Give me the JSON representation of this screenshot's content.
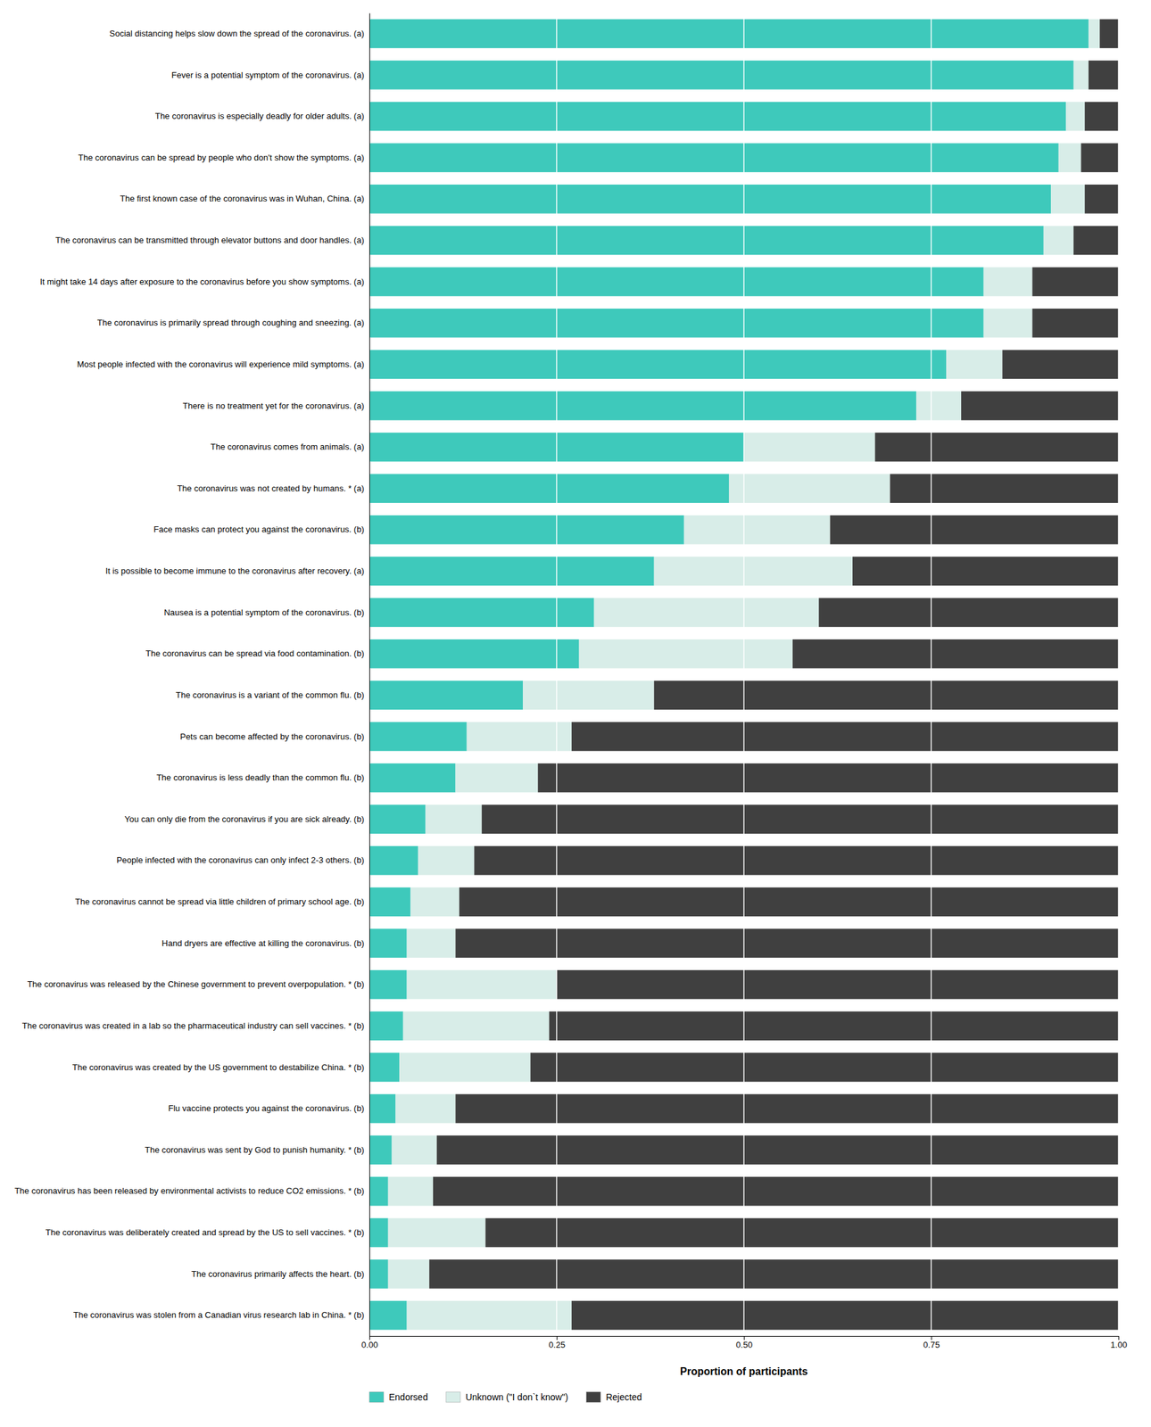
{
  "chart_data": {
    "type": "bar",
    "orientation": "horizontal",
    "stacked": true,
    "grid": true,
    "legend": "lower left",
    "xlabel": "Proportion of participants",
    "xlim": [
      0,
      1.0
    ],
    "xticks": [
      {
        "value": 0.0,
        "label": "0.00"
      },
      {
        "value": 0.25,
        "label": "0.25"
      },
      {
        "value": 0.5,
        "label": "0.50"
      },
      {
        "value": 0.75,
        "label": "0.75"
      },
      {
        "value": 1.0,
        "label": "1.00"
      }
    ],
    "categories": [
      "Social distancing helps slow down the spread of the coronavirus. (a)",
      "Fever is a potential symptom of the coronavirus. (a)",
      "The coronavirus is especially deadly for older adults. (a)",
      "The coronavirus can be spread by people who don't show the symptoms. (a)",
      "The first known case of the coronavirus was in Wuhan, China. (a)",
      "The coronavirus can be transmitted through elevator buttons and door handles. (a)",
      "It might take 14 days after exposure to the coronavirus before you show symptoms. (a)",
      "The coronavirus is primarily spread through coughing and sneezing. (a)",
      "Most people infected with the coronavirus will experience mild symptoms. (a)",
      "There is no treatment yet for the coronavirus. (a)",
      "The coronavirus comes from animals. (a)",
      "The coronavirus was not created by humans. * (a)",
      "Face masks can protect you against the coronavirus. (b)",
      "It is possible to become immune to the coronavirus after recovery. (a)",
      "Nausea is a potential symptom of the coronavirus. (b)",
      "The coronavirus can be spread via food contamination. (b)",
      "The coronavirus is a variant of the common flu. (b)",
      "Pets can become affected by the coronavirus. (b)",
      "The coronavirus is less deadly than the common flu. (b)",
      "You can only die from the coronavirus if you are sick already. (b)",
      "People infected with the coronavirus can only infect 2-3 others. (b)",
      "The coronavirus cannot be spread via little children of primary school age. (b)",
      "Hand dryers are effective at killing the coronavirus. (b)",
      "The coronavirus was released by the Chinese government to prevent overpopulation. * (b)",
      "The coronavirus was created in a lab so the pharmaceutical industry can sell vaccines. * (b)",
      "The coronavirus was created by the US government to destabilize China. * (b)",
      "Flu vaccine protects you against the coronavirus. (b)",
      "The coronavirus was sent by God to punish humanity. * (b)",
      "The coronavirus has been released by environmental activists to reduce CO2 emissions. * (b)",
      "The coronavirus was deliberately created and spread by the US to sell vaccines. * (b)",
      "The coronavirus primarily affects the heart. (b)",
      "The coronavirus was stolen from a Canadian virus research lab in China. * (b)"
    ],
    "series": [
      {
        "name": "Endorsed",
        "color": "#3ec9bb",
        "values": [
          0.96,
          0.94,
          0.93,
          0.92,
          0.91,
          0.9,
          0.82,
          0.82,
          0.77,
          0.73,
          0.5,
          0.48,
          0.42,
          0.38,
          0.3,
          0.28,
          0.205,
          0.13,
          0.115,
          0.075,
          0.065,
          0.055,
          0.05,
          0.05,
          0.045,
          0.04,
          0.035,
          0.03,
          0.025,
          0.025,
          0.025,
          0.05
        ]
      },
      {
        "name": "Unknown (\"I don`t know\")",
        "color": "#d8ede8",
        "values": [
          0.015,
          0.02,
          0.025,
          0.03,
          0.045,
          0.04,
          0.065,
          0.065,
          0.075,
          0.06,
          0.175,
          0.215,
          0.195,
          0.265,
          0.3,
          0.285,
          0.175,
          0.14,
          0.11,
          0.075,
          0.075,
          0.065,
          0.065,
          0.2,
          0.195,
          0.175,
          0.08,
          0.06,
          0.06,
          0.13,
          0.055,
          0.22
        ]
      },
      {
        "name": "Rejected",
        "color": "#404040",
        "values": [
          0.025,
          0.04,
          0.045,
          0.05,
          0.045,
          0.06,
          0.115,
          0.115,
          0.155,
          0.21,
          0.325,
          0.305,
          0.385,
          0.355,
          0.4,
          0.435,
          0.62,
          0.73,
          0.775,
          0.85,
          0.86,
          0.88,
          0.885,
          0.75,
          0.76,
          0.785,
          0.885,
          0.91,
          0.915,
          0.845,
          0.92,
          0.73
        ]
      }
    ]
  }
}
